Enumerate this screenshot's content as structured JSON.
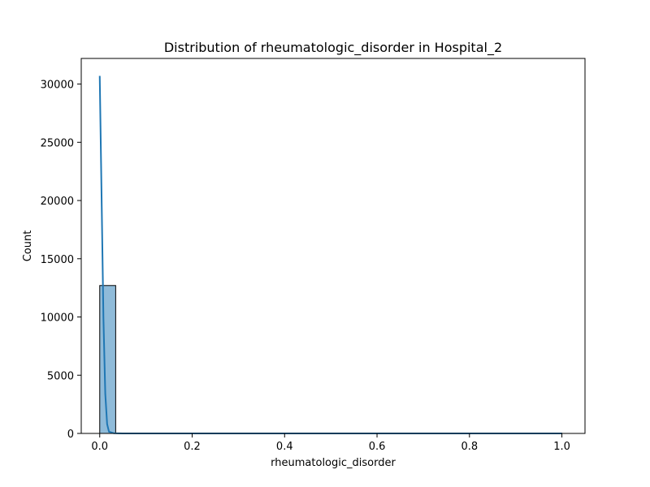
{
  "chart_data": {
    "type": "bar",
    "title": "Distribution of rheumatologic_disorder in Hospital_2",
    "xlabel": "rheumatologic_disorder",
    "ylabel": "Count",
    "xlim": [
      -0.04,
      1.05
    ],
    "ylim": [
      0,
      32200
    ],
    "xticks": [
      0.0,
      0.2,
      0.4,
      0.6,
      0.8,
      1.0
    ],
    "xtick_labels": [
      "0.0",
      "0.2",
      "0.4",
      "0.6",
      "0.8",
      "1.0"
    ],
    "yticks": [
      0,
      5000,
      10000,
      15000,
      20000,
      25000,
      30000
    ],
    "ytick_labels": [
      "0",
      "5000",
      "10000",
      "15000",
      "20000",
      "25000",
      "30000"
    ],
    "bins": [
      {
        "x0": 0.0,
        "x1": 0.0345,
        "count": 12700
      },
      {
        "x0": 0.9655,
        "x1": 1.0,
        "count": 20
      }
    ],
    "kde": {
      "x": [
        0.0,
        0.004,
        0.008,
        0.012,
        0.016,
        0.02,
        0.03,
        0.05,
        0.1,
        0.3,
        0.6,
        0.95,
        1.0
      ],
      "y": [
        30700,
        20300,
        9900,
        3400,
        800,
        150,
        20,
        0,
        0,
        0,
        0,
        0,
        0
      ]
    },
    "bar_color": "#1f77b4",
    "bar_opacity": 0.5,
    "line_color": "#1f77b4",
    "grid": false,
    "legend": "none"
  }
}
